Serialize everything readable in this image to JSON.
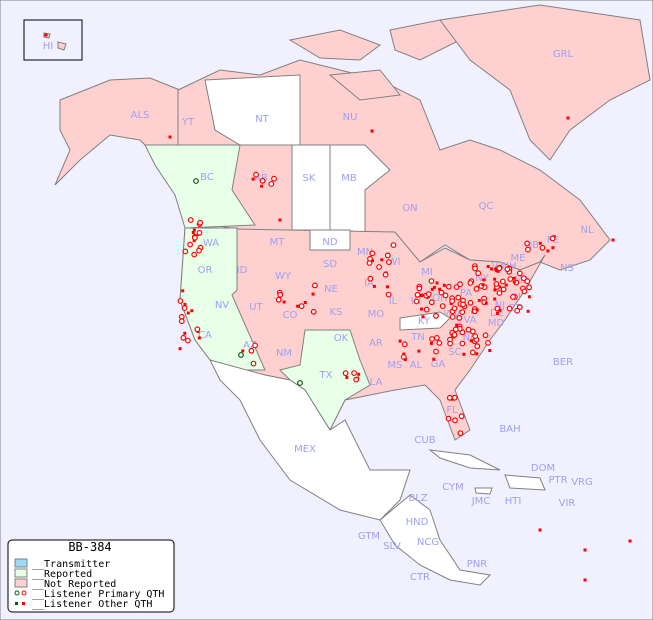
{
  "map": {
    "colors": {
      "ocean": "#f0f0ff",
      "not_reported": "#ffd0d0",
      "reported": "#e8ffe8",
      "transmitter": "#a0d8f8",
      "unlisted": "#ffffff",
      "border": "#808080",
      "label": "#a0a0f0",
      "marker": "#ff0000",
      "marker_green": "#006000"
    },
    "labels": [
      "HI",
      "ALS",
      "YT",
      "NT",
      "NU",
      "GRL",
      "BC",
      "AB",
      "SK",
      "MB",
      "ON",
      "QC",
      "NL",
      "NS",
      "NB",
      "PE",
      "WA",
      "OR",
      "CA",
      "NV",
      "ID",
      "MT",
      "WY",
      "UT",
      "AZ",
      "CO",
      "NM",
      "ND",
      "SD",
      "NE",
      "KS",
      "OK",
      "TX",
      "MN",
      "IA",
      "MO",
      "AR",
      "LA",
      "WI",
      "IL",
      "MS",
      "MI",
      "IN",
      "KY",
      "TN",
      "AL",
      "GA",
      "FL",
      "OH",
      "WV",
      "VA",
      "NC",
      "SC",
      "PA",
      "NY",
      "MD",
      "DE",
      "NJ",
      "CT",
      "RI",
      "MA",
      "VT",
      "NH",
      "ME",
      "MEX",
      "CUB",
      "BAH",
      "BER",
      "DOM",
      "PTR",
      "VRG",
      "CYM",
      "JMC",
      "HTI",
      "VIR",
      "BLZ",
      "GTM",
      "HND",
      "SLV",
      "NCG",
      "CTR",
      "PNR"
    ]
  },
  "legend": {
    "title": "BB-384",
    "items": [
      {
        "label": "__Transmitter",
        "type": "swatch",
        "color": "#a0d8f8"
      },
      {
        "label": "__Reported",
        "type": "swatch",
        "color": "#e8ffe8"
      },
      {
        "label": "__Not Reported",
        "type": "swatch",
        "color": "#ffd0d0"
      },
      {
        "label": "__Listener Primary QTH",
        "type": "circle"
      },
      {
        "label": "__Listener Other QTH",
        "type": "square"
      }
    ]
  }
}
